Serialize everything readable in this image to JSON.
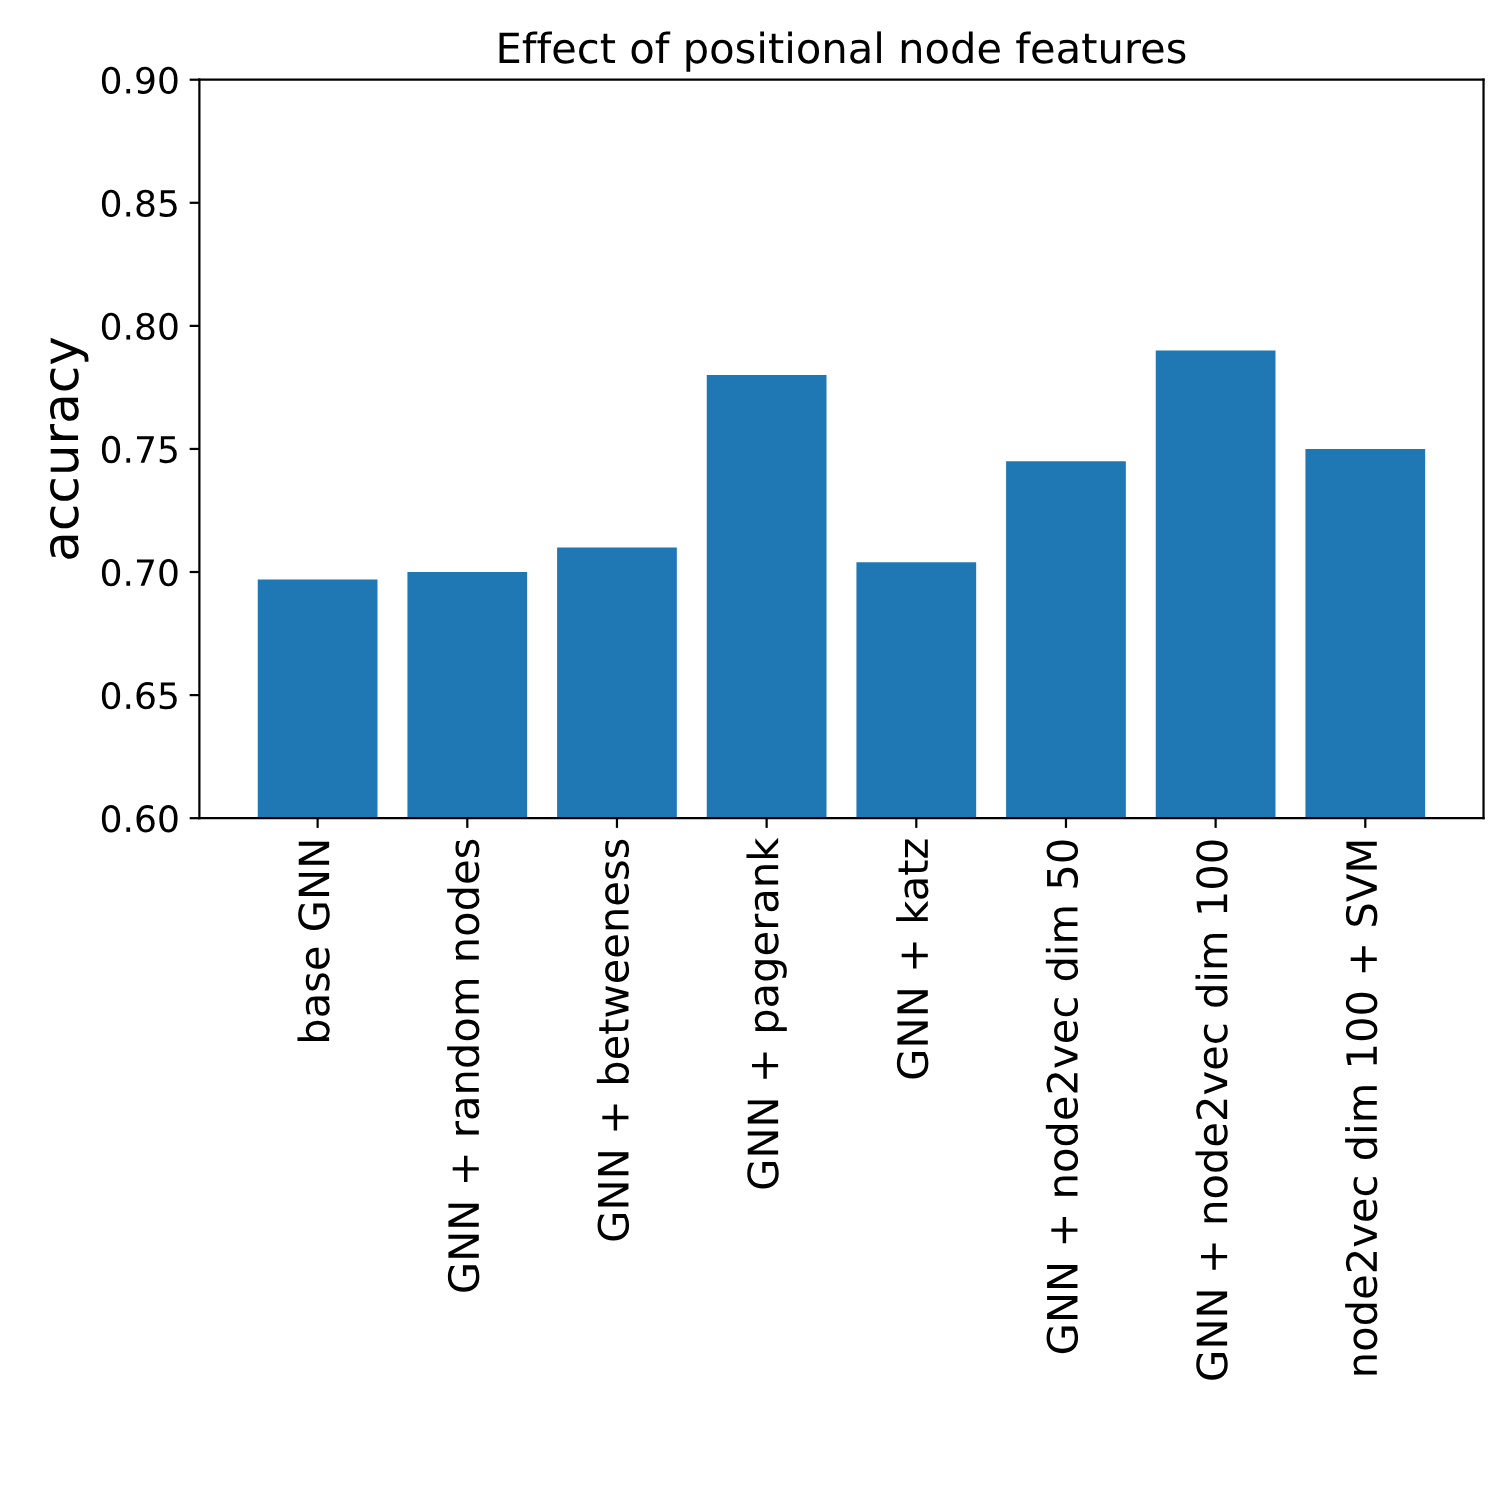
{
  "chart_data": {
    "type": "bar",
    "title": "Effect of positional node features",
    "ylabel": "accuracy",
    "categories": [
      "base GNN",
      "GNN + random nodes",
      "GNN + betweeness",
      "GNN + pagerank",
      "GNN + katz",
      "GNN + node2vec dim 50",
      "GNN + node2vec dim 100",
      "node2vec dim 100 + SVM"
    ],
    "values": [
      0.697,
      0.7,
      0.71,
      0.78,
      0.704,
      0.745,
      0.79,
      0.75
    ],
    "color": "#1f77b4",
    "ylim": [
      0.6,
      0.9
    ],
    "yticks": [
      {
        "value": 0.6,
        "label": "0.60"
      },
      0.65,
      {
        "value": 0.7,
        "label": "0.70"
      },
      0.75,
      {
        "value": 0.8,
        "label": "0.80"
      },
      0.85,
      {
        "value": 0.9,
        "label": "0.90"
      }
    ],
    "grid": false,
    "legend": false
  }
}
